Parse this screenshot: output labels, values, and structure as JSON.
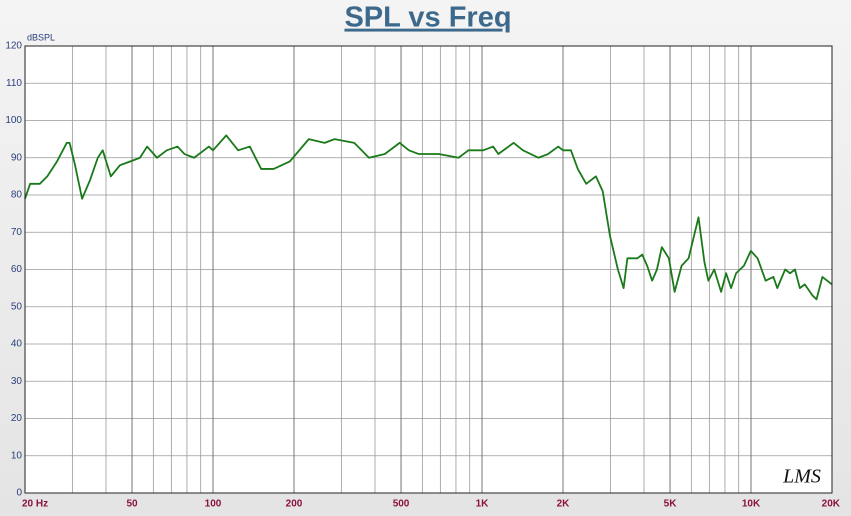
{
  "chart_data": {
    "type": "line",
    "title": "SPL vs Freq",
    "y_label": "dBSPL",
    "annotation": "LMS",
    "log_x": true,
    "grid": true,
    "color": "#1a7a1a",
    "xlim": [
      20,
      20000
    ],
    "ylim": [
      0,
      120
    ],
    "yticks": [
      0,
      10,
      20,
      30,
      40,
      50,
      60,
      70,
      80,
      90,
      100,
      110,
      120
    ],
    "xticks": [
      {
        "value": 20,
        "label": "20 Hz"
      },
      50,
      100,
      200,
      500,
      {
        "value": 1000,
        "label": "1K"
      },
      {
        "value": 2000,
        "label": "2K"
      },
      {
        "value": 5000,
        "label": "5K"
      },
      {
        "value": 10000,
        "label": "10K"
      },
      {
        "value": 20000,
        "label": "20K"
      }
    ],
    "x": [
      20,
      20.9,
      22.7,
      24.2,
      26.3,
      28.6,
      29.3,
      30.7,
      32.6,
      34.9,
      37.3,
      38.9,
      41.7,
      45.1,
      49.2,
      53.5,
      56.9,
      61.9,
      67.3,
      73.8,
      78.3,
      85.1,
      96.5,
      100,
      112,
      124,
      137,
      151,
      168,
      193,
      227,
      260,
      283,
      335,
      380,
      435,
      494,
      535,
      582,
      690,
      818,
      890,
      1010,
      1100,
      1150,
      1310,
      1420,
      1620,
      1760,
      1920,
      2000,
      2140,
      2270,
      2440,
      2650,
      2810,
      2990,
      3200,
      3360,
      3470,
      3780,
      3940,
      4110,
      4290,
      4470,
      4660,
      4950,
      5200,
      5520,
      5860,
      6380,
      6710,
      6940,
      7300,
      7740,
      8080,
      8430,
      8800,
      9410,
      9980,
      10580,
      11330,
      12110,
      12520,
      13390,
      13970,
      14570,
      15190,
      15840,
      16940,
      17520,
      18420,
      20000
    ],
    "values": [
      79,
      83,
      83,
      85,
      89,
      94,
      94,
      88,
      79,
      84,
      90,
      92,
      85,
      88,
      89,
      90,
      93,
      90,
      92,
      93,
      91,
      90,
      93,
      92,
      96,
      92,
      93,
      87,
      87,
      89,
      95,
      94,
      95,
      94,
      90,
      91,
      94,
      92,
      91,
      91,
      90,
      92,
      92,
      93,
      91,
      94,
      92,
      90,
      91,
      93,
      92,
      92,
      87,
      83,
      85,
      81,
      69,
      60,
      55,
      63,
      63,
      64,
      61,
      57,
      60,
      66,
      63,
      54,
      61,
      63,
      74,
      62,
      57,
      60,
      54,
      59,
      55,
      59,
      61,
      65,
      63,
      57,
      58,
      55,
      60,
      59,
      60,
      55,
      56,
      53,
      52,
      58,
      56
    ]
  }
}
